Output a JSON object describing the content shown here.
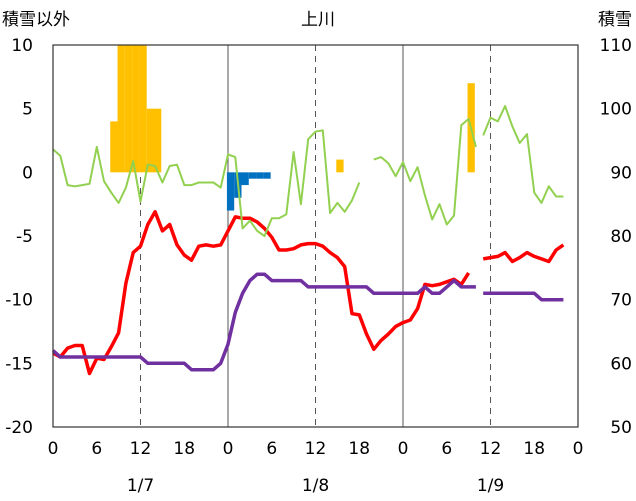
{
  "chart_data": {
    "type": "line",
    "title": "上川",
    "ylabel_left": "積雪以外",
    "ylabel_right": "積雪",
    "ylim_left": [
      -20,
      10
    ],
    "ylim_right": [
      50,
      110
    ],
    "left_ticks": [
      10,
      5,
      0,
      -5,
      -10,
      -15,
      -20
    ],
    "right_ticks": [
      110,
      100,
      90,
      80,
      70,
      60,
      50
    ],
    "x_range_hours": [
      0,
      72
    ],
    "x_tick_labels": [
      "0",
      "6",
      "12",
      "18",
      "0",
      "6",
      "12",
      "18",
      "0",
      "6",
      "12",
      "18",
      "0"
    ],
    "day_labels": [
      "1/7",
      "1/8",
      "1/9"
    ],
    "grid": "dashed vertical at 12:00, solid vertical at day boundaries",
    "colors": {
      "temperature": "#ff0000",
      "snow_depth": "#7030a0",
      "wind": "#92d050",
      "snowfall": "#ffc000",
      "snow_decrease": "#0070c0"
    },
    "series": [
      {
        "axis": "left",
        "color": "#ff0000",
        "points": [
          [
            0,
            -14.2
          ],
          [
            1,
            -14.5
          ],
          [
            2,
            -13.8
          ],
          [
            3,
            -13.6
          ],
          [
            4,
            -13.6
          ],
          [
            5,
            -15.8
          ],
          [
            6,
            -14.6
          ],
          [
            7,
            -14.7
          ],
          [
            8,
            -13.7
          ],
          [
            9,
            -12.6
          ],
          [
            10,
            -8.7
          ],
          [
            11,
            -6.3
          ],
          [
            12,
            -5.8
          ],
          [
            13,
            -4.1
          ],
          [
            14,
            -3.1
          ],
          [
            15,
            -4.6
          ],
          [
            16,
            -4.1
          ],
          [
            17,
            -5.7
          ],
          [
            18,
            -6.5
          ],
          [
            19,
            -6.9
          ],
          [
            20,
            -5.8
          ],
          [
            21,
            -5.7
          ],
          [
            22,
            -5.8
          ],
          [
            23,
            -5.7
          ],
          [
            24,
            -4.6
          ],
          [
            25,
            -3.5
          ],
          [
            26,
            -3.6
          ],
          [
            27,
            -3.6
          ],
          [
            28,
            -3.9
          ],
          [
            29,
            -4.4
          ],
          [
            30,
            -5.1
          ],
          [
            31,
            -6.1
          ],
          [
            32,
            -6.1
          ],
          [
            33,
            -6.0
          ],
          [
            34,
            -5.7
          ],
          [
            35,
            -5.6
          ],
          [
            36,
            -5.6
          ],
          [
            37,
            -5.8
          ],
          [
            38,
            -6.3
          ],
          [
            39,
            -6.7
          ],
          [
            40,
            -7.4
          ],
          [
            41,
            -11.1
          ],
          [
            42,
            -11.2
          ],
          [
            43,
            -12.7
          ],
          [
            44,
            -13.9
          ],
          [
            45,
            -13.2
          ],
          [
            46,
            -12.7
          ],
          [
            47,
            -12.1
          ],
          [
            48,
            -11.8
          ],
          [
            49,
            -11.6
          ],
          [
            50,
            -10.7
          ],
          [
            51,
            -8.8
          ],
          [
            52,
            -8.9
          ],
          [
            53,
            -8.8
          ],
          [
            54,
            -8.6
          ],
          [
            55,
            -8.4
          ],
          [
            56,
            -8.8
          ],
          [
            57,
            -7.9
          ],
          [
            null,
            null
          ],
          [
            59,
            -6.8
          ],
          [
            60,
            -6.7
          ],
          [
            61,
            -6.6
          ],
          [
            62,
            -6.3
          ],
          [
            63,
            -7.0
          ],
          [
            64,
            -6.7
          ],
          [
            65,
            -6.3
          ],
          [
            66,
            -6.6
          ],
          [
            67,
            -6.8
          ],
          [
            68,
            -7.0
          ],
          [
            69,
            -6.1
          ],
          [
            70,
            -5.7
          ]
        ]
      },
      {
        "axis": "left",
        "color": "#92d050",
        "points": [
          [
            0,
            1.8
          ],
          [
            1,
            1.3
          ],
          [
            2,
            -1.0
          ],
          [
            3,
            -1.1
          ],
          [
            4,
            -1.0
          ],
          [
            5,
            -0.9
          ],
          [
            6,
            2.0
          ],
          [
            7,
            -0.7
          ],
          [
            8,
            -1.6
          ],
          [
            9,
            -2.4
          ],
          [
            10,
            -1.2
          ],
          [
            11,
            0.9
          ],
          [
            12,
            -2.3
          ],
          [
            13,
            0.6
          ],
          [
            14,
            0.5
          ],
          [
            15,
            -0.8
          ],
          [
            16,
            0.5
          ],
          [
            17,
            0.6
          ],
          [
            18,
            -1.0
          ],
          [
            19,
            -1.0
          ],
          [
            20,
            -0.8
          ],
          [
            21,
            -0.8
          ],
          [
            22,
            -0.8
          ],
          [
            23,
            -1.2
          ],
          [
            24,
            1.4
          ],
          [
            25,
            1.2
          ],
          [
            26,
            -4.4
          ],
          [
            27,
            -3.8
          ],
          [
            28,
            -4.6
          ],
          [
            29,
            -5.0
          ],
          [
            30,
            -3.6
          ],
          [
            31,
            -3.6
          ],
          [
            32,
            -3.3
          ],
          [
            33,
            1.6
          ],
          [
            34,
            -2.5
          ],
          [
            35,
            2.6
          ],
          [
            36,
            3.2
          ],
          [
            37,
            3.3
          ],
          [
            38,
            -3.2
          ],
          [
            39,
            -2.4
          ],
          [
            40,
            -3.1
          ],
          [
            41,
            -2.2
          ],
          [
            42,
            -0.8
          ],
          [
            null,
            null
          ],
          [
            44,
            1.0
          ],
          [
            45,
            1.2
          ],
          [
            46,
            0.7
          ],
          [
            47,
            -0.3
          ],
          [
            48,
            0.8
          ],
          [
            49,
            -0.7
          ],
          [
            50,
            0.4
          ],
          [
            51,
            -1.8
          ],
          [
            52,
            -3.7
          ],
          [
            53,
            -2.5
          ],
          [
            54,
            -4.1
          ],
          [
            55,
            -3.4
          ],
          [
            56,
            3.7
          ],
          [
            57,
            4.2
          ],
          [
            58,
            2.0
          ],
          [
            null,
            null
          ],
          [
            59,
            2.9
          ],
          [
            60,
            4.3
          ],
          [
            61,
            4.0
          ],
          [
            62,
            5.2
          ],
          [
            63,
            3.6
          ],
          [
            64,
            2.3
          ],
          [
            65,
            3.0
          ],
          [
            66,
            -1.6
          ],
          [
            67,
            -2.4
          ],
          [
            68,
            -1.1
          ],
          [
            69,
            -1.9
          ],
          [
            70,
            -1.9
          ]
        ]
      },
      {
        "axis": "right",
        "color": "#7030a0",
        "points": [
          [
            0,
            62
          ],
          [
            1,
            61
          ],
          [
            2,
            61
          ],
          [
            3,
            61
          ],
          [
            4,
            61
          ],
          [
            5,
            61
          ],
          [
            6,
            61
          ],
          [
            7,
            61
          ],
          [
            8,
            61
          ],
          [
            9,
            61
          ],
          [
            10,
            61
          ],
          [
            11,
            61
          ],
          [
            12,
            61
          ],
          [
            13,
            60
          ],
          [
            14,
            60
          ],
          [
            15,
            60
          ],
          [
            16,
            60
          ],
          [
            17,
            60
          ],
          [
            18,
            60
          ],
          [
            19,
            59
          ],
          [
            20,
            59
          ],
          [
            21,
            59
          ],
          [
            22,
            59
          ],
          [
            23,
            60
          ],
          [
            24,
            63
          ],
          [
            25,
            68
          ],
          [
            26,
            71
          ],
          [
            27,
            73
          ],
          [
            28,
            74
          ],
          [
            29,
            74
          ],
          [
            30,
            73
          ],
          [
            31,
            73
          ],
          [
            32,
            73
          ],
          [
            33,
            73
          ],
          [
            34,
            73
          ],
          [
            35,
            72
          ],
          [
            36,
            72
          ],
          [
            37,
            72
          ],
          [
            38,
            72
          ],
          [
            39,
            72
          ],
          [
            40,
            72
          ],
          [
            41,
            72
          ],
          [
            42,
            72
          ],
          [
            43,
            72
          ],
          [
            44,
            71
          ],
          [
            45,
            71
          ],
          [
            46,
            71
          ],
          [
            47,
            71
          ],
          [
            48,
            71
          ],
          [
            49,
            71
          ],
          [
            50,
            71
          ],
          [
            51,
            72
          ],
          [
            52,
            71
          ],
          [
            53,
            71
          ],
          [
            54,
            72
          ],
          [
            55,
            73
          ],
          [
            56,
            72
          ],
          [
            57,
            72
          ],
          [
            58,
            72
          ],
          [
            null,
            null
          ],
          [
            59,
            71
          ],
          [
            60,
            71
          ],
          [
            61,
            71
          ],
          [
            62,
            71
          ],
          [
            63,
            71
          ],
          [
            64,
            71
          ],
          [
            65,
            71
          ],
          [
            66,
            71
          ],
          [
            67,
            70
          ],
          [
            68,
            70
          ],
          [
            69,
            70
          ],
          [
            70,
            70
          ]
        ]
      }
    ],
    "bars": [
      {
        "x": 8,
        "value": 4.0,
        "color": "#ffc000"
      },
      {
        "x": 9,
        "value": 10.0,
        "color": "#ffc000"
      },
      {
        "x": 10,
        "value": 10.0,
        "color": "#ffc000"
      },
      {
        "x": 11,
        "value": 10.0,
        "color": "#ffc000"
      },
      {
        "x": 12,
        "value": 10.0,
        "color": "#ffc000"
      },
      {
        "x": 13,
        "value": 5.0,
        "color": "#ffc000"
      },
      {
        "x": 14,
        "value": 5.0,
        "color": "#ffc000"
      },
      {
        "x": 24,
        "value": -3.0,
        "color": "#0070c0"
      },
      {
        "x": 25,
        "value": -2.0,
        "color": "#0070c0"
      },
      {
        "x": 26,
        "value": -1.0,
        "color": "#0070c0"
      },
      {
        "x": 27,
        "value": -0.5,
        "color": "#0070c0"
      },
      {
        "x": 28,
        "value": -0.5,
        "color": "#0070c0"
      },
      {
        "x": 29,
        "value": -0.5,
        "color": "#0070c0"
      },
      {
        "x": 39,
        "value": 1.0,
        "color": "#ffc000"
      },
      {
        "x": 57,
        "value": 7.0,
        "color": "#ffc000"
      }
    ]
  }
}
